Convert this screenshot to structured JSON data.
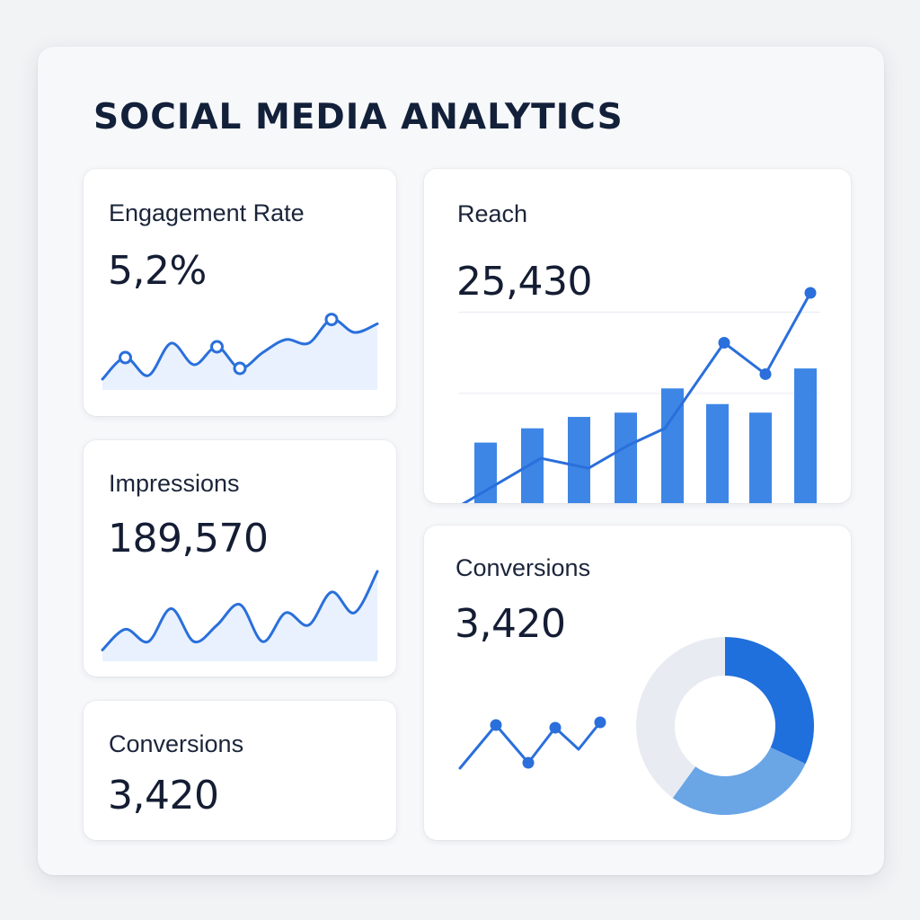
{
  "page": {
    "title": "SOCIAL MEDIA ANALYTICS"
  },
  "colors": {
    "accent": "#2a6fdb",
    "bar": "#3d86e6",
    "area_fill": "#e8f1fd",
    "donut_dark": "#1f6fdc",
    "donut_light": "#6aa5e6",
    "donut_track": "#e8ecf2"
  },
  "cards": {
    "engagement": {
      "label": "Engagement Rate",
      "value": "5,2%"
    },
    "reach": {
      "label": "Reach",
      "value": "25,430"
    },
    "impressions": {
      "label": "Impressions",
      "value": "189,570"
    },
    "conversions_small": {
      "label": "Conversions",
      "value": "3,420"
    },
    "conversions_large": {
      "label": "Conversions",
      "value": "3,420"
    }
  },
  "chart_data": [
    {
      "id": "engagement-sparkline",
      "type": "area",
      "values": [
        0.05,
        0.35,
        0.1,
        0.55,
        0.25,
        0.5,
        0.2,
        0.42,
        0.6,
        0.55,
        0.88,
        0.7,
        0.82
      ],
      "markers": [
        1,
        5,
        6,
        10
      ],
      "ylim": [
        0,
        1
      ],
      "grid": false
    },
    {
      "id": "reach-combo",
      "type": "bar",
      "categories": [
        "1",
        "2",
        "3",
        "4",
        "5",
        "6",
        "7",
        "8"
      ],
      "series": [
        {
          "type": "bar",
          "values": [
            45,
            55,
            63,
            66,
            83,
            72,
            66,
            97
          ]
        },
        {
          "type": "line",
          "values": [
            0,
            34,
            27,
            43,
            55,
            115,
            93,
            150
          ],
          "markers": [
            5,
            6,
            7
          ]
        }
      ],
      "ylim": [
        0,
        150
      ],
      "grid": true
    },
    {
      "id": "impressions-sparkline",
      "type": "area",
      "values": [
        0.05,
        0.3,
        0.15,
        0.55,
        0.15,
        0.35,
        0.6,
        0.15,
        0.5,
        0.35,
        0.75,
        0.5,
        1.0
      ],
      "ylim": [
        0,
        1
      ],
      "grid": false
    },
    {
      "id": "conversions-mini-line",
      "type": "line",
      "values": [
        0.1,
        0.9,
        0.2,
        0.85,
        0.45,
        0.95
      ],
      "markers": [
        1,
        2,
        3,
        5
      ],
      "ylim": [
        0,
        1
      ],
      "grid": false
    },
    {
      "id": "conversions-donut",
      "type": "pie",
      "values": [
        32,
        28,
        40
      ],
      "colors": [
        "#1f6fdc",
        "#6aa5e6",
        "#e8ecf2"
      ],
      "donut": true
    }
  ]
}
